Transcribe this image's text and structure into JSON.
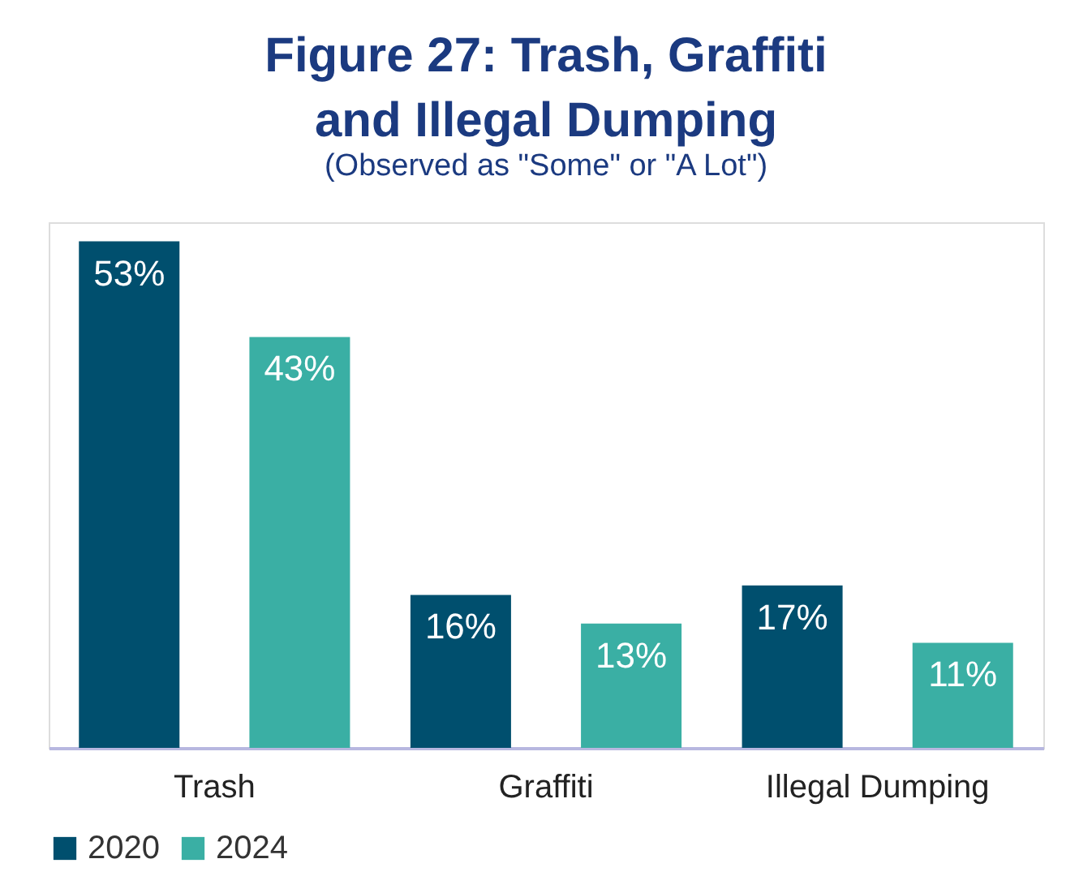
{
  "chart_data": {
    "type": "bar",
    "title": "Figure 27: Trash, Graffiti and Illegal Dumping",
    "subtitle": "(Observed as \"Some\" or \"A Lot\")",
    "categories": [
      "Trash",
      "Graffiti",
      "Illegal Dumping"
    ],
    "series": [
      {
        "name": "2020",
        "color": "#004f6e",
        "values": [
          53,
          16,
          17
        ],
        "value_labels": [
          "53%",
          "16%",
          "17%"
        ]
      },
      {
        "name": "2024",
        "color": "#3aafa4",
        "values": [
          43,
          13,
          11
        ],
        "value_labels": [
          "43%",
          "13%",
          "11%"
        ]
      }
    ],
    "data_labels": true,
    "legend": "bottom",
    "grid": false
  }
}
